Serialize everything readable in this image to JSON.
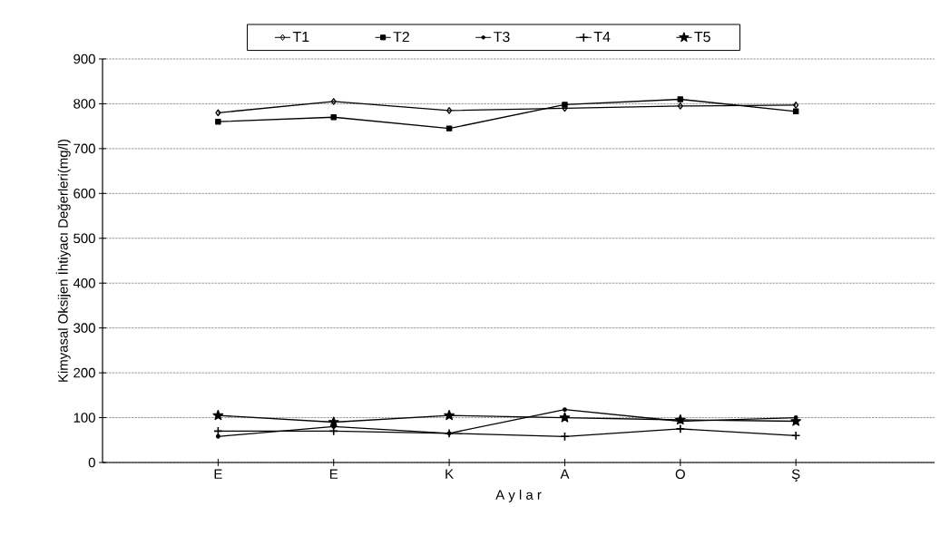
{
  "chart_data": {
    "type": "line",
    "xlabel": "A y l a r",
    "ylabel": "Kimyasal Oksijen İhtiyacı Değerleri(mg/l)",
    "categories": [
      "E",
      "E",
      "K",
      "A",
      "O",
      "Ş"
    ],
    "series": [
      {
        "name": "T1",
        "color": "#000000",
        "marker": "diamond",
        "values": [
          780,
          805,
          785,
          790,
          795,
          797
        ]
      },
      {
        "name": "T2",
        "color": "#000000",
        "marker": "square",
        "values": [
          760,
          770,
          745,
          798,
          810,
          783
        ]
      },
      {
        "name": "T3",
        "color": "#000000",
        "marker": "circle",
        "values": [
          58,
          80,
          65,
          118,
          92,
          100
        ]
      },
      {
        "name": "T4",
        "color": "#000000",
        "marker": "cross",
        "values": [
          70,
          70,
          65,
          58,
          75,
          60
        ]
      },
      {
        "name": "T5",
        "color": "#000000",
        "marker": "star",
        "values": [
          105,
          90,
          105,
          100,
          95,
          92
        ]
      }
    ],
    "ylim": [
      0,
      900
    ],
    "yticks": [
      0,
      100,
      200,
      300,
      400,
      500,
      600,
      700,
      800,
      900
    ],
    "grid": "y",
    "legend": "top",
    "line_style": "solid"
  }
}
